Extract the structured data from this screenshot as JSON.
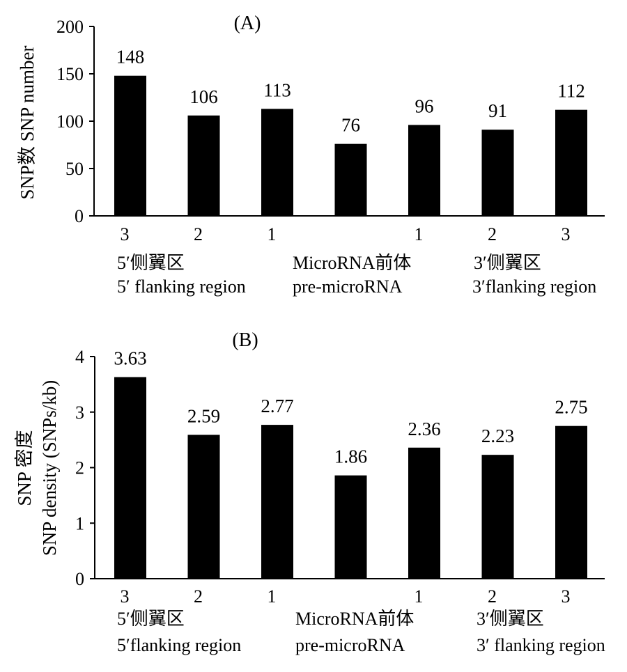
{
  "chart_data": [
    {
      "type": "bar",
      "panel_label": "(A)",
      "ylabel": "SNP数 SNP number",
      "ylim": [
        0,
        200
      ],
      "yticks": [
        0,
        50,
        100,
        150,
        200
      ],
      "categories": [
        "3",
        "2",
        "1",
        "",
        "1",
        "2",
        "3"
      ],
      "values": [
        148,
        106,
        113,
        76,
        96,
        91,
        112
      ],
      "value_labels": [
        "148",
        "106",
        "113",
        "76",
        "96",
        "91",
        "112"
      ],
      "bar_color": "#000000",
      "groups": [
        {
          "zh": "5′侧翼区",
          "en": "5′ flanking region"
        },
        {
          "zh": "MicroRNA前体",
          "en": "pre-microRNA"
        },
        {
          "zh": "3′侧翼区",
          "en": "3′flanking region"
        }
      ]
    },
    {
      "type": "bar",
      "panel_label": "(B)",
      "ylabel_line1": "SNP 密度",
      "ylabel_line2": "SNP density (SNPs/kb)",
      "ylim": [
        0,
        4
      ],
      "yticks": [
        0,
        1,
        2,
        3,
        4
      ],
      "categories": [
        "3",
        "2",
        "1",
        "",
        "1",
        "2",
        "3"
      ],
      "values": [
        3.63,
        2.59,
        2.77,
        1.86,
        2.36,
        2.23,
        2.75
      ],
      "value_labels": [
        "3.63",
        "2.59",
        "2.77",
        "1.86",
        "2.36",
        "2.23",
        "2.75"
      ],
      "bar_color": "#000000",
      "groups": [
        {
          "zh": "5′侧翼区",
          "en": "5′flanking region"
        },
        {
          "zh": "MicroRNA前体",
          "en": "pre-microRNA"
        },
        {
          "zh": "3′侧翼区",
          "en": "3′ flanking region"
        }
      ]
    }
  ]
}
